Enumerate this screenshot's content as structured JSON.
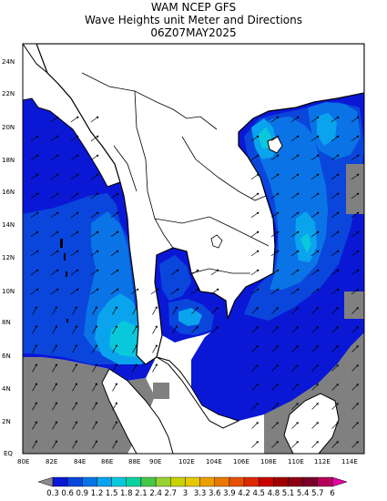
{
  "header": {
    "line1": "WAM NCEP GFS",
    "line2": "Wave Heights unit Meter and Directions",
    "line3": "06Z07MAY2025"
  },
  "axes": {
    "lat_labels": [
      "24N",
      "22N",
      "20N",
      "18N",
      "16N",
      "14N",
      "12N",
      "10N",
      "8N",
      "6N",
      "4N",
      "2N",
      "EQ"
    ],
    "lon_labels": [
      "80E",
      "82E",
      "84E",
      "86E",
      "88E",
      "90E",
      "102E",
      "104E",
      "106E",
      "108E",
      "110E",
      "112E",
      "114E"
    ]
  },
  "legend": {
    "labels": [
      "0.3",
      "0.6",
      "0.9",
      "1.2",
      "1.5",
      "1.8",
      "2.1",
      "2.4",
      "2.7",
      "3",
      "3.3",
      "3.6",
      "3.9",
      "4.2",
      "4.5",
      "4.8",
      "5.1",
      "5.4",
      "5.7",
      "6"
    ],
    "colors": [
      "#8c8c8c",
      "#0a18d6",
      "#0a46dc",
      "#0a74e6",
      "#0aa4ee",
      "#0ac8dc",
      "#0ad2a0",
      "#46c846",
      "#96d232",
      "#c8d200",
      "#e6c800",
      "#eba000",
      "#eb7800",
      "#e65000",
      "#dc2800",
      "#c80000",
      "#a00000",
      "#8c0014",
      "#780028",
      "#b4005a",
      "#e600a0"
    ]
  },
  "colors": {
    "land": "#ffffff",
    "coast": "#000000",
    "nodata": "#808080",
    "low_wave": "#0a18d6",
    "mid_wave": "#0a46dc",
    "high_wave": "#0a74e6",
    "peak_wave": "#0aa4ee",
    "max_wave": "#0ac8dc"
  }
}
